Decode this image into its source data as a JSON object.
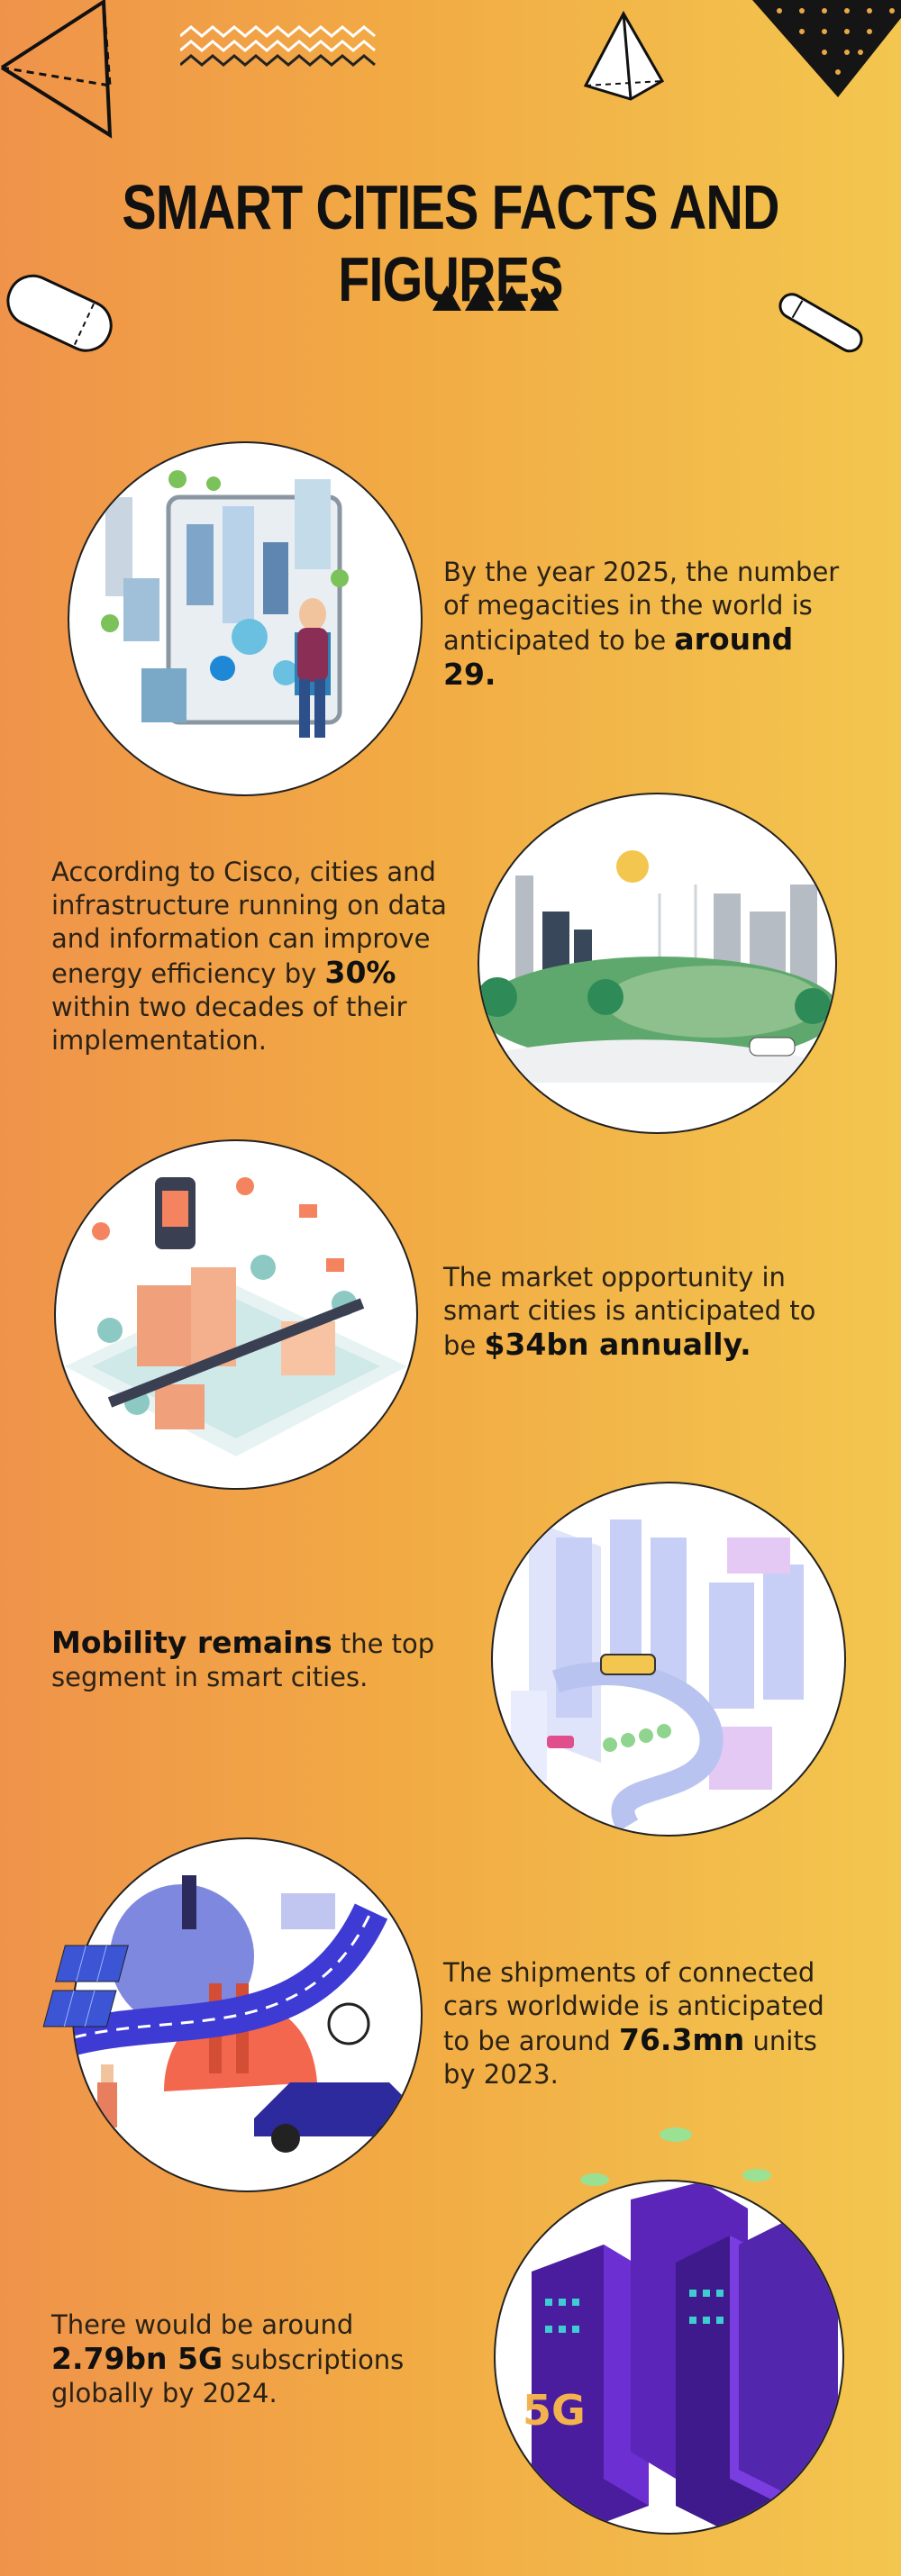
{
  "title": "SMART CITIES FACTS AND FIGURES",
  "facts": [
    {
      "pre": "By the year 2025, the number of megacities in the world is anticipated to be ",
      "bold": "around 29.",
      "post": ""
    },
    {
      "pre": "According to Cisco, cities and infrastructure running on data and information can improve energy efficiency by ",
      "bold": "30%",
      "post": " within two decades of their implementation."
    },
    {
      "pre": "The market opportunity in smart cities is anticipated to be ",
      "bold": "$34bn annually.",
      "post": ""
    },
    {
      "pre": "",
      "bold": "Mobility remains",
      "post": " the top segment in smart cities."
    },
    {
      "pre": "The shipments of connected cars worldwide is anticipated to be around ",
      "bold": "76.3mn",
      "post": " units by 2023."
    },
    {
      "pre": "There would be around ",
      "bold": "2.79bn 5G",
      "post": " subscriptions globally by 2024."
    }
  ],
  "illustration_labels": {
    "fiveg": "5G"
  },
  "colors": {
    "bg_left": "#ef934a",
    "bg_right": "#f3c64f",
    "ink": "#111111"
  }
}
